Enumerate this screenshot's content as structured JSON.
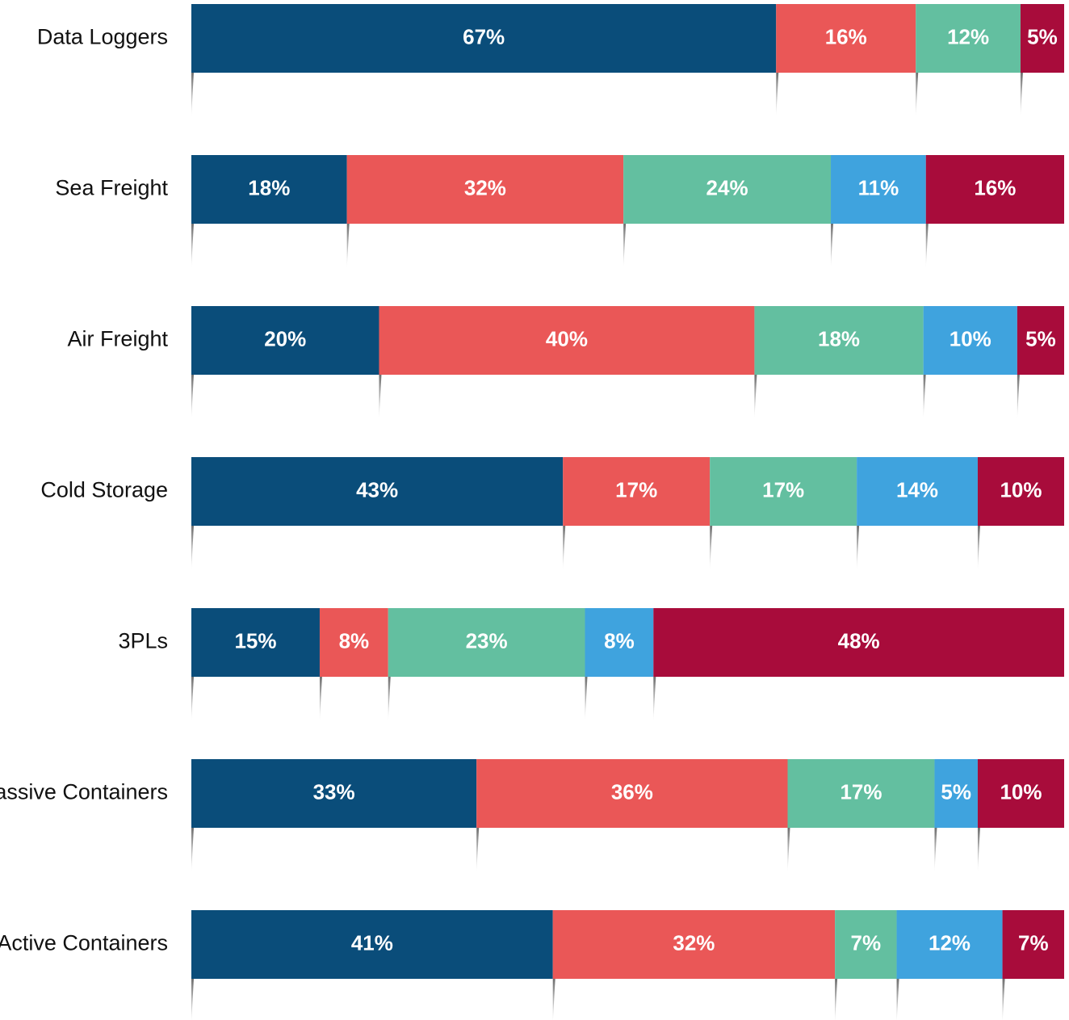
{
  "chart_data": {
    "type": "stacked_bar_horizontal",
    "categories": [
      "Data Loggers",
      "Sea Freight",
      "Air Freight",
      "Cold Storage",
      "3PLs",
      "Passive Containers",
      "Active Containers"
    ],
    "series": [
      {
        "color": "#0a4d7a",
        "values": [
          67,
          18,
          20,
          43,
          15,
          33,
          41
        ],
        "value_labels": [
          "67%",
          "18%",
          "20%",
          "43%",
          "15%",
          "33%",
          "41%"
        ]
      },
      {
        "color": "#ea5757",
        "values": [
          16,
          32,
          40,
          17,
          8,
          36,
          32
        ],
        "value_labels": [
          "16%",
          "32%",
          "40%",
          "17%",
          "8%",
          "36%",
          "32%"
        ]
      },
      {
        "color": "#63bfa0",
        "values": [
          12,
          24,
          18,
          17,
          23,
          17,
          7
        ],
        "value_labels": [
          "12%",
          "24%",
          "18%",
          "17%",
          "23%",
          "17%",
          "7%"
        ]
      },
      {
        "color": "#3fa3de",
        "values": [
          null,
          11,
          10,
          14,
          8,
          5,
          12
        ],
        "value_labels": [
          null,
          "11%",
          "10%",
          "14%",
          "8%",
          "5%",
          "12%"
        ]
      },
      {
        "color": "#a80c3b",
        "values": [
          5,
          16,
          5,
          10,
          48,
          10,
          7
        ],
        "value_labels": [
          "5%",
          "16%",
          "5%",
          "10%",
          "48%",
          "10%",
          "7%"
        ]
      }
    ]
  }
}
